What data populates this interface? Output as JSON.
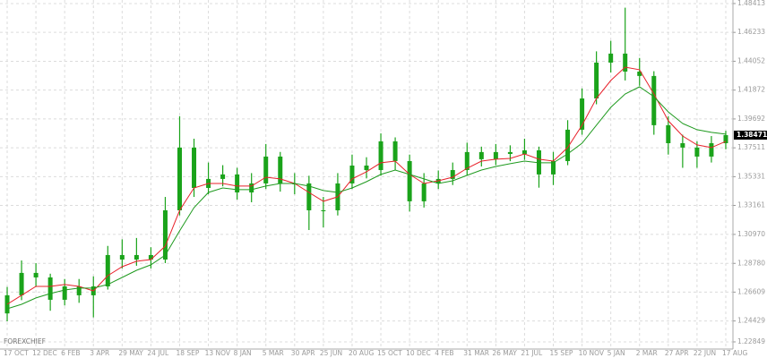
{
  "chart_data": {
    "type": "candlestick",
    "watermark": "FOREXCHIEF",
    "candle_color": "#1aa31a",
    "categories": [
      "17 OCT",
      null,
      "12 DEC",
      null,
      "6 FEB",
      null,
      "3 APR",
      null,
      "29 MAY",
      null,
      "24 JUL",
      null,
      "18 SEP",
      null,
      "13 NOV",
      null,
      "8 JAN",
      null,
      "5 MAR",
      null,
      "30 APR",
      null,
      "25 JUN",
      null,
      "20 AUG",
      null,
      "15 OCT",
      null,
      "10 DEC",
      null,
      "4 FEB",
      null,
      "31 MAR",
      null,
      "26 MAY",
      null,
      "21 JUL",
      null,
      "15 SEP",
      null,
      "10 NOV",
      null,
      "5 JAN",
      null,
      "2 MAR",
      null,
      "27 APR",
      null,
      "22 JUN",
      null,
      "17 AUG"
    ],
    "open": [
      1.25,
      1.2637,
      1.2806,
      1.2772,
      1.2603,
      1.2704,
      1.2637,
      1.2704,
      1.2941,
      1.2907,
      1.2941,
      1.2907,
      1.3279,
      1.3753,
      1.3448,
      1.3516,
      1.355,
      1.3414,
      1.3482,
      1.3685,
      1.3482,
      1.3482,
      1.3279,
      1.3279,
      1.3482,
      1.3617,
      1.3583,
      1.38,
      1.3651,
      1.3347,
      1.3482,
      1.3516,
      1.3583,
      1.3719,
      1.3665,
      1.3719,
      1.3705,
      1.3732,
      1.355,
      1.3651,
      1.3888,
      1.4124,
      1.4395,
      1.4463,
      1.4327,
      1.4294,
      1.3922,
      1.3786,
      1.3753,
      1.3685,
      1.3786
    ],
    "high": [
      1.27,
      1.29,
      1.288,
      1.28,
      1.276,
      1.276,
      1.278,
      1.301,
      1.306,
      1.307,
      1.3,
      1.338,
      1.399,
      1.382,
      1.364,
      1.362,
      1.36,
      1.356,
      1.378,
      1.372,
      1.356,
      1.354,
      1.338,
      1.356,
      1.37,
      1.368,
      1.386,
      1.383,
      1.37,
      1.356,
      1.358,
      1.364,
      1.379,
      1.376,
      1.378,
      1.377,
      1.382,
      1.376,
      1.372,
      1.396,
      1.42,
      1.448,
      1.456,
      1.481,
      1.443,
      1.433,
      1.399,
      1.385,
      1.38,
      1.384,
      1.388
    ],
    "low": [
      1.244,
      1.26,
      1.27,
      1.252,
      1.256,
      1.258,
      1.247,
      1.268,
      1.284,
      1.286,
      1.284,
      1.288,
      1.324,
      1.338,
      1.34,
      1.346,
      1.336,
      1.334,
      1.344,
      1.342,
      1.34,
      1.313,
      1.315,
      1.324,
      1.344,
      1.352,
      1.354,
      1.358,
      1.327,
      1.33,
      1.344,
      1.347,
      1.354,
      1.361,
      1.362,
      1.365,
      1.366,
      1.345,
      1.347,
      1.362,
      1.385,
      1.408,
      1.432,
      1.426,
      1.422,
      1.385,
      1.37,
      1.36,
      1.36,
      1.364,
      1.374
    ],
    "close": [
      1.2637,
      1.2806,
      1.2772,
      1.2603,
      1.2704,
      1.2637,
      1.2704,
      1.2941,
      1.2907,
      1.2941,
      1.2907,
      1.3279,
      1.3753,
      1.3448,
      1.3516,
      1.355,
      1.3414,
      1.3482,
      1.3685,
      1.3482,
      1.3482,
      1.3279,
      1.3279,
      1.3482,
      1.3617,
      1.3583,
      1.38,
      1.3651,
      1.3347,
      1.3482,
      1.3516,
      1.3583,
      1.3719,
      1.3665,
      1.3719,
      1.3705,
      1.3732,
      1.355,
      1.3651,
      1.3888,
      1.4124,
      1.4395,
      1.4463,
      1.4327,
      1.4294,
      1.3922,
      1.3786,
      1.3753,
      1.3685,
      1.3786,
      1.38471
    ],
    "ma_lines": [
      {
        "color": "#e8202a",
        "values": [
          1.2569,
          1.2637,
          1.2704,
          1.2704,
          1.2718,
          1.2704,
          1.267,
          1.2785,
          1.2853,
          1.2894,
          1.2907,
          1.3009,
          1.3279,
          1.3448,
          1.3482,
          1.3482,
          1.3462,
          1.3462,
          1.3529,
          1.3516,
          1.3482,
          1.3414,
          1.3347,
          1.3381,
          1.3516,
          1.357,
          1.3638,
          1.3651,
          1.355,
          1.3482,
          1.3502,
          1.3529,
          1.3597,
          1.3651,
          1.3665,
          1.3671,
          1.3705,
          1.3665,
          1.3651,
          1.3753,
          1.3922,
          1.4124,
          1.426,
          1.4361,
          1.4341,
          1.4158,
          1.3956,
          1.384,
          1.3773,
          1.3753,
          1.38
        ]
      },
      {
        "color": "#1f9a1f",
        "values": [
          1.2535,
          1.2569,
          1.2617,
          1.265,
          1.2677,
          1.2691,
          1.2691,
          1.2718,
          1.2772,
          1.2826,
          1.2867,
          1.2941,
          1.3124,
          1.3299,
          1.3414,
          1.3448,
          1.3435,
          1.3435,
          1.3462,
          1.3482,
          1.3482,
          1.3462,
          1.3428,
          1.3414,
          1.3448,
          1.3495,
          1.355,
          1.3583,
          1.355,
          1.3516,
          1.3482,
          1.3502,
          1.3543,
          1.3583,
          1.361,
          1.3631,
          1.3651,
          1.3638,
          1.3638,
          1.3705,
          1.3786,
          1.3922,
          1.4057,
          1.4158,
          1.4212,
          1.4138,
          1.4023,
          1.3935,
          1.3888,
          1.3868,
          1.3854
        ]
      }
    ],
    "ylim": [
      1.22307,
      1.4868
    ],
    "yticks": [
      1.22849,
      1.24429,
      1.26609,
      {
        "value": 1.2878,
        "label": "1.28780"
      },
      {
        "value": 1.3097,
        "label": "1.30970"
      },
      1.33161,
      1.35331,
      1.37511,
      1.39692,
      1.41872,
      1.44052,
      1.46233,
      1.48413
    ],
    "grid": true
  }
}
